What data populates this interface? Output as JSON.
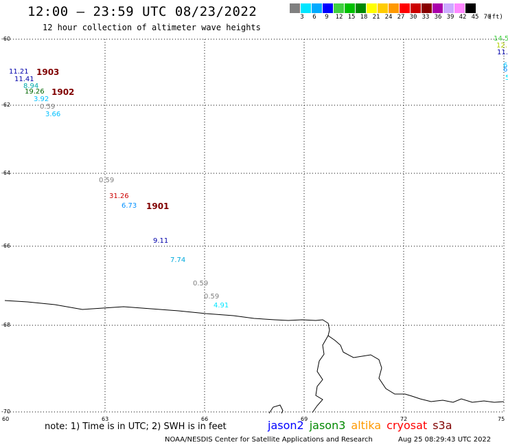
{
  "title": "12:00 — 23:59 UTC 08/23/2022",
  "subtitle": "12 hour collection of altimeter wave heights",
  "color_scale": {
    "swatches": [
      "#808080",
      "#00e5ff",
      "#00aaff",
      "#0000ff",
      "#40d040",
      "#00c000",
      "#008800",
      "#ffff00",
      "#ffcc00",
      "#ff9900",
      "#ff0000",
      "#cc0000",
      "#880000",
      "#aa00aa",
      "#ccaaff",
      "#ff88ff",
      "#000000"
    ],
    "labels": [
      "3",
      "6",
      "9",
      "12",
      "15",
      "18",
      "21",
      "24",
      "27",
      "30",
      "33",
      "36",
      "39",
      "42",
      "45",
      "70",
      "(ft)"
    ]
  },
  "axes": {
    "lat_labels": [
      "-60",
      "-62",
      "-64",
      "-66",
      "-68",
      "-70"
    ],
    "lon_labels": [
      "60",
      "63",
      "66",
      "69",
      "72",
      "75"
    ]
  },
  "observations": [
    {
      "text": "11.21",
      "color": "#0000aa"
    },
    {
      "text": "11.41",
      "color": "#0000aa"
    },
    {
      "text": "8.94",
      "color": "#00aaaa"
    },
    {
      "text": "19.26",
      "color": "#006600"
    },
    {
      "text": "3.92",
      "color": "#00c0ff"
    },
    {
      "text": "0.59",
      "color": "#808080"
    },
    {
      "text": "3.66",
      "color": "#00c0ff"
    },
    {
      "text": "0.59",
      "color": "#808080"
    },
    {
      "text": "31.26",
      "color": "#cc0000"
    },
    {
      "text": "6.73",
      "color": "#0090ff"
    },
    {
      "text": "9.11",
      "color": "#0000aa"
    },
    {
      "text": "7.74",
      "color": "#00aadd"
    },
    {
      "text": "0.59",
      "color": "#808080"
    },
    {
      "text": "0.59",
      "color": "#808080"
    },
    {
      "text": "4.91",
      "color": "#00e5ff"
    },
    {
      "text": "14.5",
      "color": "#40d040"
    },
    {
      "text": "12.",
      "color": "#b0d000"
    },
    {
      "text": "11.",
      "color": "#0000aa"
    },
    {
      "text": "6",
      "color": "#00c0ff"
    },
    {
      "text": "6",
      "color": "#0090ff"
    },
    {
      "text": "5",
      "color": "#00e5ff"
    }
  ],
  "cycles": [
    "1903",
    "1902",
    "1901"
  ],
  "note": "note: 1) Time is in UTC; 2) SWH is in feet",
  "legend": [
    {
      "name": "jason2",
      "color": "#0000ff"
    },
    {
      "name": "jason3",
      "color": "#008800"
    },
    {
      "name": "altika",
      "color": "#ff9900"
    },
    {
      "name": "cryosat",
      "color": "#ff0000"
    },
    {
      "name": "s3a",
      "color": "#800000"
    }
  ],
  "footer_left": "NOAA/NESDIS Center for Satellite Applications and Research",
  "footer_right": "Aug 25 08:29:43 UTC 2022"
}
